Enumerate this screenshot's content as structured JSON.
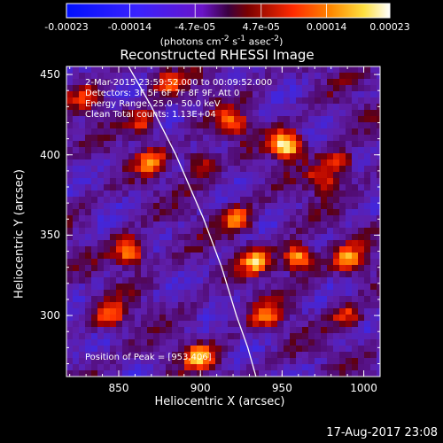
{
  "colorbar": {
    "ticks": [
      "-0.00023",
      "-0.00014",
      "-4.7e-05",
      "4.7e-05",
      "0.00014",
      "0.00023"
    ],
    "tick_values": [
      -0.00023,
      -0.00014,
      -4.7e-05,
      4.7e-05,
      0.00014,
      0.00023
    ],
    "units_html": "(photons cm<sup>-2</sup> s<sup>-1</sup> asec<sup>-2</sup>)",
    "units_text": "(photons cm-2 s-1 asec-2)",
    "range": [
      -0.00023,
      0.00023
    ]
  },
  "annotations": {
    "time_range": "2-Mar-2015 23:59:52.000  to 00:09:52.000",
    "detectors": "Detectors: 3F 5F 6F 7F 8F 9F, Att 0",
    "energy": "Energy Range: 25.0 - 50.0 keV",
    "clean": "Clean     Total counts: 1.13E+04",
    "peak": "Position of Peak = [953,406]"
  },
  "footer": {
    "date": "17-Aug-2017 23:08"
  },
  "chart_data": {
    "type": "heatmap",
    "title": "Reconstructed RHESSI Image",
    "xlabel": "Heliocentric X (arcsec)",
    "ylabel": "Heliocentric Y (arcsec)",
    "xlim": [
      818,
      1010
    ],
    "ylim": [
      262,
      455
    ],
    "xticks": [
      850,
      900,
      950,
      1000
    ],
    "yticks": [
      300,
      350,
      400,
      450
    ],
    "colormap": "rainbow-hot (blue-purple-red-orange-yellow-white)",
    "bright_sources": [
      {
        "x": 953,
        "y": 406,
        "level": 1.0
      },
      {
        "x": 857,
        "y": 340,
        "level": 0.75
      },
      {
        "x": 960,
        "y": 336,
        "level": 0.85
      },
      {
        "x": 934,
        "y": 334,
        "level": 0.7
      },
      {
        "x": 990,
        "y": 335,
        "level": 0.65
      },
      {
        "x": 900,
        "y": 274,
        "level": 0.7
      },
      {
        "x": 922,
        "y": 360,
        "level": 0.6
      },
      {
        "x": 870,
        "y": 395,
        "level": 0.55
      },
      {
        "x": 975,
        "y": 385,
        "level": 0.5
      },
      {
        "x": 845,
        "y": 300,
        "level": 0.6
      },
      {
        "x": 880,
        "y": 445,
        "level": 0.45
      },
      {
        "x": 940,
        "y": 300,
        "level": 0.55
      },
      {
        "x": 985,
        "y": 395,
        "level": 0.5
      },
      {
        "x": 920,
        "y": 420,
        "level": 0.55
      },
      {
        "x": 865,
        "y": 420,
        "level": 0.5
      },
      {
        "x": 990,
        "y": 300,
        "level": 0.45
      },
      {
        "x": 900,
        "y": 395,
        "level": 0.4
      },
      {
        "x": 830,
        "y": 435,
        "level": 0.35
      }
    ],
    "limb": [
      {
        "x": 856,
        "y": 455
      },
      {
        "x": 870,
        "y": 430
      },
      {
        "x": 885,
        "y": 400
      },
      {
        "x": 902,
        "y": 360
      },
      {
        "x": 913,
        "y": 330
      },
      {
        "x": 922,
        "y": 300
      },
      {
        "x": 929,
        "y": 280
      },
      {
        "x": 934,
        "y": 262
      }
    ]
  }
}
